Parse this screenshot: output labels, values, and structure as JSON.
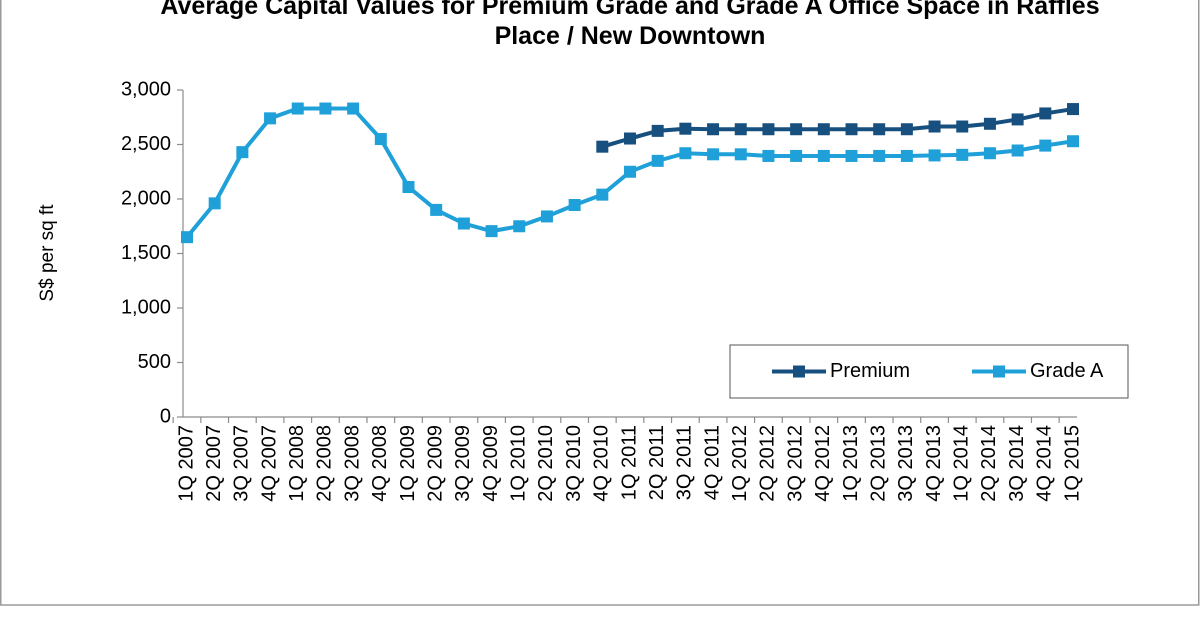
{
  "chart_data": {
    "type": "line",
    "title": "Average Capital Values for Premium Grade and Grade A Office Space in Raffles Place / New Downtown",
    "y_label": "S$ per sq ft",
    "categories": [
      "1Q 2007",
      "2Q 2007",
      "3Q 2007",
      "4Q 2007",
      "1Q 2008",
      "2Q 2008",
      "3Q 2008",
      "4Q 2008",
      "1Q 2009",
      "2Q 2009",
      "3Q 2009",
      "4Q 2009",
      "1Q 2010",
      "2Q 2010",
      "3Q 2010",
      "4Q 2010",
      "1Q 2011",
      "2Q 2011",
      "3Q 2011",
      "4Q 2011",
      "1Q 2012",
      "2Q 2012",
      "3Q 2012",
      "4Q 2012",
      "1Q 2013",
      "2Q 2013",
      "3Q 2013",
      "4Q 2013",
      "1Q 2014",
      "2Q 2014",
      "3Q 2014",
      "4Q 2014",
      "1Q 2015"
    ],
    "series": [
      {
        "name": "Premium",
        "color": "#17507f",
        "values": [
          null,
          null,
          null,
          null,
          null,
          null,
          null,
          null,
          null,
          null,
          null,
          null,
          null,
          null,
          null,
          2480,
          2555,
          2625,
          2645,
          2640,
          2640,
          2640,
          2640,
          2640,
          2640,
          2640,
          2640,
          2665,
          2665,
          2690,
          2730,
          2785,
          2825
        ]
      },
      {
        "name": "Grade A",
        "color": "#1fa0d8",
        "values": [
          1650,
          1960,
          2430,
          2740,
          2830,
          2830,
          2830,
          2550,
          2110,
          1900,
          1775,
          1705,
          1750,
          1840,
          1945,
          2040,
          2250,
          2350,
          2420,
          2410,
          2410,
          2395,
          2395,
          2395,
          2395,
          2395,
          2395,
          2400,
          2405,
          2420,
          2445,
          2490,
          2530
        ]
      }
    ],
    "ylim": [
      0,
      3000
    ],
    "yticks": [
      0,
      500,
      {
        "value": 1000,
        "label": "1,000"
      },
      {
        "value": 1500,
        "label": "1,500"
      },
      {
        "value": 2000,
        "label": "2,000"
      },
      {
        "value": 2500,
        "label": "2,500"
      },
      {
        "value": 3000,
        "label": "3,000"
      }
    ],
    "grid": false,
    "legend": "lower-right"
  }
}
